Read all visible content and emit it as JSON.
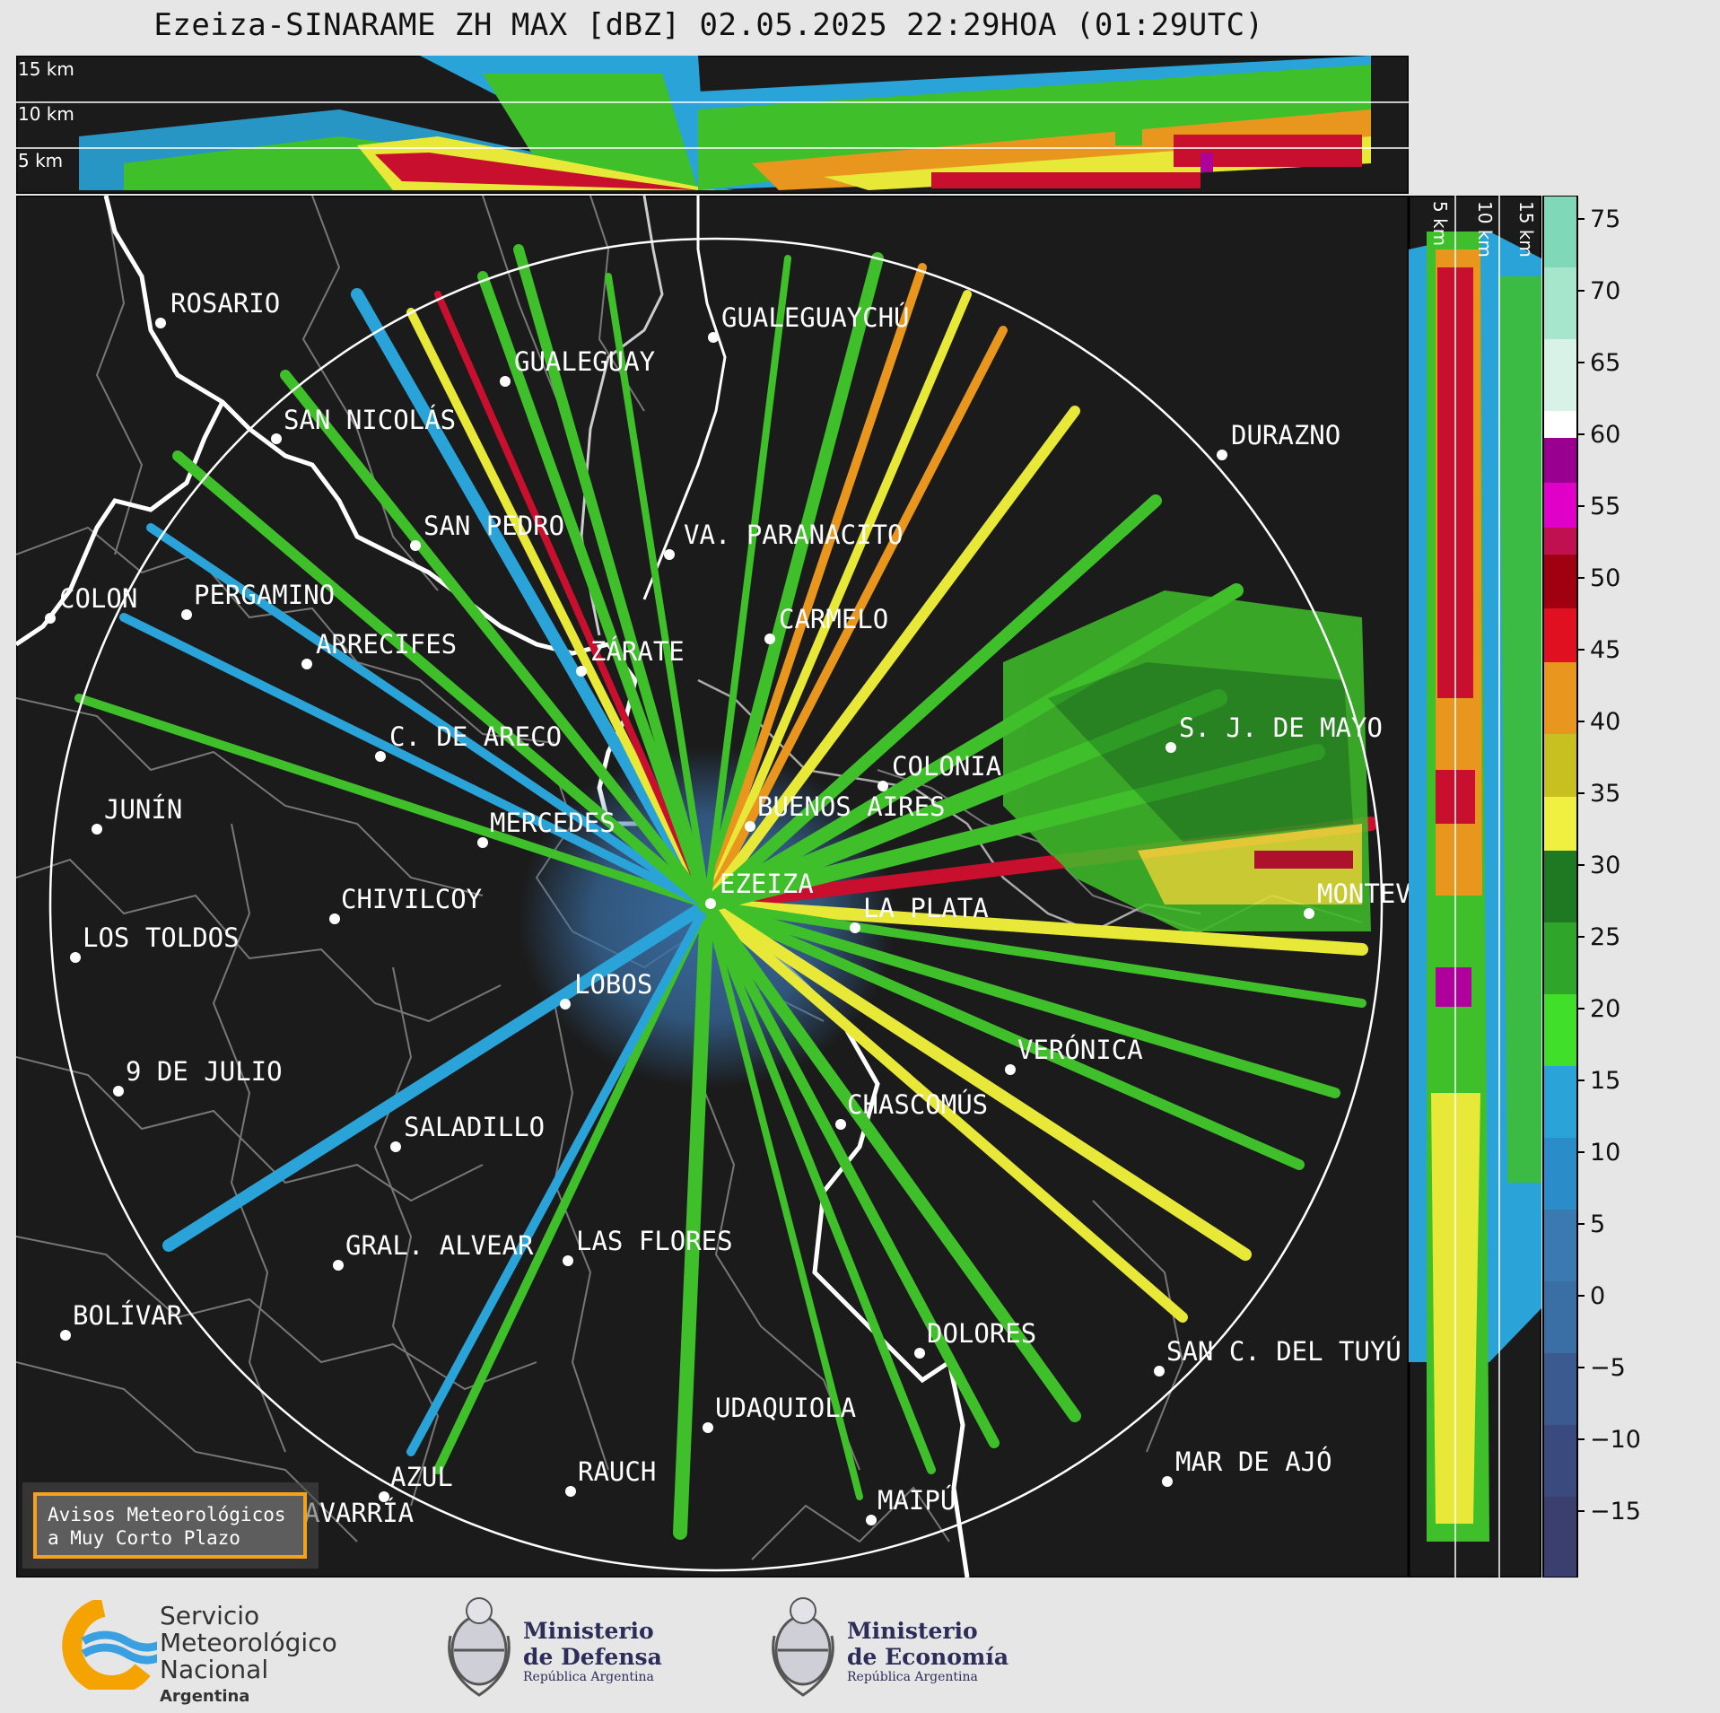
{
  "title": "Ezeiza-SINARAME ZH MAX [dBZ] 02.05.2025 22:29HOA (01:29UTC)",
  "top_panel": {
    "altitudes": [
      "15 km",
      "10 km",
      "5 km"
    ]
  },
  "side_panel": {
    "altitudes": [
      "5 km",
      "10 km",
      "15 km"
    ]
  },
  "colorbar": {
    "ticks": [
      "75",
      "70",
      "65",
      "60",
      "55",
      "50",
      "45",
      "40",
      "35",
      "30",
      "25",
      "20",
      "15",
      "10",
      "5",
      "0",
      "−5",
      "−10",
      "−15"
    ],
    "colors": {
      "high": "#7fd9b9",
      "white": "#ffffff",
      "magenta": "#b0009c",
      "red": "#c8102e",
      "orange": "#e8961e",
      "yellow": "#e8e838",
      "green": "#3fbf2a",
      "darkgreen": "#1e7a22",
      "cyan": "#2aa4d8",
      "blue": "#3a6fa5",
      "navy": "#3a3f6e"
    }
  },
  "cities": [
    "ROSARIO",
    "GUALEGUAYCHÚ",
    "GUALEGUAY",
    "SAN NICOLÁS",
    "DURAZNO",
    "SAN PEDRO",
    "VA. PARANACITO",
    "COLON",
    "PERGAMINO",
    "CARMELO",
    "ARRECIFES",
    "ZÁRATE",
    "S. J. DE MAYO",
    "C. DE ARECO",
    "COLONIA",
    "JUNÍN",
    "MERCEDES",
    "BUENOS AIRES",
    "EZEIZA",
    "MONTEV",
    "CHIVILCOY",
    "LA PLATA",
    "LOS TOLDOS",
    "LOBOS",
    "VERÓNICA",
    "9 DE JULIO",
    "CHASCOMÚS",
    "SALADILLO",
    "GRAL. ALVEAR",
    "LAS FLORES",
    "BOLÍVAR",
    "DOLORES",
    "SAN C. DEL TUYÚ",
    "UDAQUIOLA",
    "MAR DE AJÓ",
    "AZUL",
    "RAUCH",
    "OLAVARRÍA",
    "MAIPÚ"
  ],
  "aviso": {
    "line1": "Avisos Meteorológicos",
    "line2": "a Muy Corto Plazo"
  },
  "logos": {
    "smn": {
      "line1": "Servicio",
      "line2": "Meteorológico",
      "line3": "Nacional",
      "line4": "Argentina"
    },
    "defensa": {
      "line1": "Ministerio",
      "line2": "de Defensa",
      "line3": "República Argentina"
    },
    "economia": {
      "line1": "Ministerio",
      "line2": "de Economía",
      "line3": "República Argentina"
    }
  }
}
